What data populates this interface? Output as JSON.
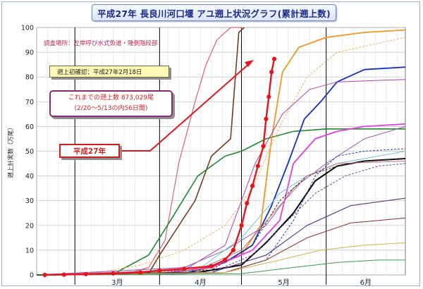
{
  "title": "平成27年 長良川河口堰 アユ遡上状況グラフ(累計遡上数)",
  "notes": {
    "survey_location": "調査場所：左岸呼び水式魚道・隆側階段部",
    "first_confirmation": "遡上初確認：平成27年2月18日",
    "total_line1": "これまでの遡上数 873,029尾",
    "total_line2": "(2/20～5/13の内56日間)",
    "current_year_label": "平成27年"
  },
  "colors": {
    "current_year": "#e8141b",
    "grid": "#bfbfbf",
    "month_divider": "#000000",
    "title_text": "#1b2a8a"
  },
  "chart_data": {
    "type": "line",
    "title": "平成27年 長良川河口堰 アユ遡上状況グラフ(累計遡上数)",
    "ylabel": "遡上計実数（万尾）",
    "xlabel": "",
    "ylim": [
      0,
      100
    ],
    "yticks": [
      0,
      10,
      20,
      30,
      40,
      50,
      60,
      70,
      80,
      90,
      100
    ],
    "x_range": [
      "02-15",
      "06-30"
    ],
    "months": [
      {
        "label": "3月",
        "start": "03-01"
      },
      {
        "label": "4月",
        "start": "04-01"
      },
      {
        "label": "5月",
        "start": "05-01"
      },
      {
        "label": "6月",
        "start": "06-01"
      }
    ],
    "grid": true,
    "series": [
      {
        "name": "平成27年",
        "color": "#e8141b",
        "width": 2.4,
        "markers": true,
        "x": [
          "02-18",
          "02-25",
          "03-05",
          "03-15",
          "03-25",
          "04-01",
          "04-10",
          "04-20",
          "04-25",
          "04-28",
          "05-01",
          "05-03",
          "05-05",
          "05-07",
          "05-09",
          "05-10",
          "05-11",
          "05-12",
          "05-13"
        ],
        "y": [
          0,
          0.1,
          0.3,
          0.6,
          1.0,
          1.8,
          2.5,
          3.5,
          6,
          10,
          20,
          29,
          36,
          44,
          52,
          63,
          72,
          82,
          87.3
        ]
      },
      {
        "color": "#e06070",
        "width": 1.2,
        "x": [
          "02-15",
          "03-20",
          "03-28",
          "04-03",
          "04-08",
          "04-14",
          "04-18",
          "04-22",
          "04-27",
          "05-01"
        ],
        "y": [
          0,
          0.5,
          3,
          14,
          45,
          70,
          85,
          95,
          100,
          100
        ]
      },
      {
        "color": "#7a3b1e",
        "width": 1.6,
        "x": [
          "02-15",
          "03-28",
          "04-01",
          "04-14",
          "04-20",
          "04-27",
          "04-30",
          "05-02"
        ],
        "y": [
          0,
          0.5,
          8,
          30,
          48,
          55,
          98,
          100
        ]
      },
      {
        "color": "#1f8a2a",
        "width": 1.6,
        "x": [
          "02-15",
          "03-15",
          "03-28",
          "04-05",
          "04-15",
          "04-25",
          "05-01",
          "05-10",
          "05-20",
          "06-01",
          "06-30"
        ],
        "y": [
          0,
          0.3,
          8,
          22,
          40,
          48,
          50,
          55,
          58,
          59,
          59
        ]
      },
      {
        "color": "#f7941d",
        "width": 1.8,
        "x": [
          "02-15",
          "04-10",
          "04-20",
          "05-01",
          "05-08",
          "05-12",
          "05-16",
          "05-22",
          "06-01",
          "06-15",
          "06-30"
        ],
        "y": [
          0,
          0.5,
          3,
          8,
          20,
          55,
          82,
          92,
          96,
          98,
          99
        ]
      },
      {
        "color": "#f2b25d",
        "width": 1.0,
        "dash": "3,2",
        "x": [
          "02-15",
          "03-10",
          "03-25",
          "04-10",
          "04-25",
          "05-05",
          "05-15",
          "05-25",
          "06-05",
          "06-30"
        ],
        "y": [
          0,
          1,
          4,
          10,
          20,
          35,
          60,
          80,
          90,
          96
        ]
      },
      {
        "color": "#1630c8",
        "width": 1.8,
        "x": [
          "02-15",
          "04-10",
          "04-25",
          "05-05",
          "05-12",
          "05-18",
          "05-24",
          "05-30",
          "06-05",
          "06-15",
          "06-30"
        ],
        "y": [
          0,
          0.5,
          5,
          12,
          28,
          45,
          63,
          70,
          78,
          83,
          84
        ]
      },
      {
        "color": "#e040e0",
        "width": 1.8,
        "x": [
          "02-15",
          "04-01",
          "04-20",
          "05-05",
          "05-15",
          "05-20",
          "05-28",
          "06-05",
          "06-15",
          "06-30"
        ],
        "y": [
          0,
          0.5,
          3,
          10,
          22,
          45,
          55,
          58,
          60,
          61
        ]
      },
      {
        "color": "#b53eb5",
        "width": 1.0,
        "x": [
          "02-15",
          "04-10",
          "04-25",
          "05-06",
          "05-16",
          "05-26",
          "06-05",
          "06-30"
        ],
        "y": [
          0,
          2,
          12,
          45,
          65,
          75,
          78,
          79
        ]
      },
      {
        "color": "#9b59b6",
        "width": 1.0,
        "x": [
          "02-15",
          "04-10",
          "04-25",
          "05-10",
          "05-20",
          "06-01",
          "06-15",
          "06-30"
        ],
        "y": [
          0,
          3,
          10,
          20,
          35,
          45,
          55,
          60
        ]
      },
      {
        "color": "#6ec5d8",
        "width": 1.0,
        "x": [
          "02-15",
          "04-15",
          "05-01",
          "05-15",
          "05-25",
          "06-05",
          "06-20",
          "06-30"
        ],
        "y": [
          0,
          2,
          15,
          33,
          40,
          45,
          48,
          50
        ]
      },
      {
        "color": "#000000",
        "width": 2.0,
        "x": [
          "02-15",
          "04-15",
          "05-01",
          "05-10",
          "05-20",
          "05-28",
          "06-05",
          "06-15",
          "06-30"
        ],
        "y": [
          0,
          1,
          4,
          13,
          25,
          38,
          44,
          46,
          47
        ]
      },
      {
        "color": "#2e2e2e",
        "width": 1.0,
        "dash": "3,2",
        "x": [
          "02-15",
          "04-20",
          "05-05",
          "05-15",
          "05-25",
          "06-05",
          "06-15",
          "06-30"
        ],
        "y": [
          0,
          2,
          12,
          30,
          40,
          44,
          46,
          47
        ]
      },
      {
        "color": "#c46e7a",
        "width": 1.0,
        "x": [
          "02-15",
          "04-15",
          "05-01",
          "05-15",
          "05-25",
          "06-05",
          "06-30"
        ],
        "y": [
          0,
          2,
          10,
          28,
          40,
          45,
          46
        ]
      },
      {
        "color": "#6d4a9e",
        "width": 1.0,
        "dash": "3,2",
        "x": [
          "02-15",
          "04-20",
          "05-05",
          "05-18",
          "05-28",
          "06-08",
          "06-20",
          "06-30"
        ],
        "y": [
          0,
          1,
          8,
          22,
          33,
          40,
          44,
          45
        ]
      },
      {
        "color": "#1f3fbf",
        "width": 1.0,
        "dash": "3,2",
        "x": [
          "02-15",
          "04-25",
          "05-10",
          "05-20",
          "05-28",
          "06-05",
          "06-15",
          "06-30"
        ],
        "y": [
          0,
          1,
          6,
          22,
          40,
          48,
          50,
          51
        ]
      },
      {
        "color": "#5a3c91",
        "width": 1.2,
        "x": [
          "02-15",
          "04-20",
          "05-10",
          "05-25",
          "06-10",
          "06-30"
        ],
        "y": [
          0,
          1,
          8,
          20,
          28,
          31
        ]
      },
      {
        "color": "#8b2c2c",
        "width": 1.0,
        "x": [
          "02-15",
          "04-25",
          "05-10",
          "05-25",
          "06-10",
          "06-30"
        ],
        "y": [
          0,
          1,
          6,
          15,
          21,
          23
        ]
      },
      {
        "color": "#d2b04a",
        "width": 1.0,
        "x": [
          "02-15",
          "04-25",
          "05-15",
          "05-30",
          "06-15",
          "06-30"
        ],
        "y": [
          0,
          1,
          6,
          10,
          12,
          13
        ]
      },
      {
        "color": "#3c9c4a",
        "width": 1.0,
        "x": [
          "02-15",
          "05-01",
          "05-20",
          "06-05",
          "06-20",
          "06-30"
        ],
        "y": [
          0,
          0.5,
          3,
          5,
          6,
          6
        ]
      }
    ]
  }
}
